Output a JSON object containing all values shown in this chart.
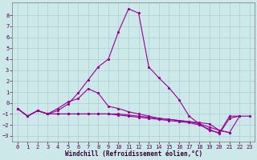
{
  "xlabel": "Windchill (Refroidissement éolien,°C)",
  "background_color": "#cce8e8",
  "grid_color": "#aacfcf",
  "line_color": "#990099",
  "x_values": [
    0,
    1,
    2,
    3,
    4,
    5,
    6,
    7,
    8,
    9,
    10,
    11,
    12,
    13,
    14,
    15,
    16,
    17,
    18,
    19,
    20,
    21,
    22,
    23
  ],
  "series_peak": [
    -0.5,
    -1.2,
    -0.7,
    -1.0,
    -0.7,
    -0.1,
    0.9,
    2.1,
    3.3,
    4.0,
    6.5,
    8.6,
    8.2,
    3.3,
    2.3,
    1.4,
    0.3,
    -1.2,
    -1.9,
    -2.5,
    -2.7,
    -1.2,
    -1.2,
    null
  ],
  "series_flat1": [
    -0.5,
    -1.2,
    -0.7,
    -1.0,
    -1.0,
    -1.0,
    -1.0,
    -1.0,
    -1.0,
    -1.0,
    -1.0,
    -1.1,
    -1.2,
    -1.3,
    -1.4,
    -1.5,
    -1.6,
    -1.7,
    -1.8,
    -1.9,
    -2.5,
    -2.7,
    -1.2,
    -1.2
  ],
  "series_flat2": [
    -0.5,
    -1.2,
    -0.7,
    -1.0,
    -1.0,
    -1.0,
    -1.0,
    -1.0,
    -1.0,
    -1.0,
    -1.1,
    -1.2,
    -1.3,
    -1.4,
    -1.5,
    -1.6,
    -1.7,
    -1.8,
    -2.0,
    -2.4,
    -2.8,
    -1.4,
    -1.2,
    null
  ],
  "series_mid": [
    -0.5,
    -1.2,
    -0.7,
    -1.0,
    -0.5,
    0.1,
    0.4,
    1.3,
    0.9,
    -0.3,
    -0.5,
    -0.8,
    -1.0,
    -1.2,
    -1.4,
    -1.5,
    -1.6,
    -1.7,
    -1.9,
    -2.2,
    -2.5,
    -2.7,
    null,
    null
  ],
  "xlim": [
    -0.5,
    23.5
  ],
  "ylim": [
    -3.5,
    9.2
  ],
  "yticks": [
    -3,
    -2,
    -1,
    0,
    1,
    2,
    3,
    4,
    5,
    6,
    7,
    8
  ],
  "xticks": [
    0,
    1,
    2,
    3,
    4,
    5,
    6,
    7,
    8,
    9,
    10,
    11,
    12,
    13,
    14,
    15,
    16,
    17,
    18,
    19,
    20,
    21,
    22,
    23
  ]
}
